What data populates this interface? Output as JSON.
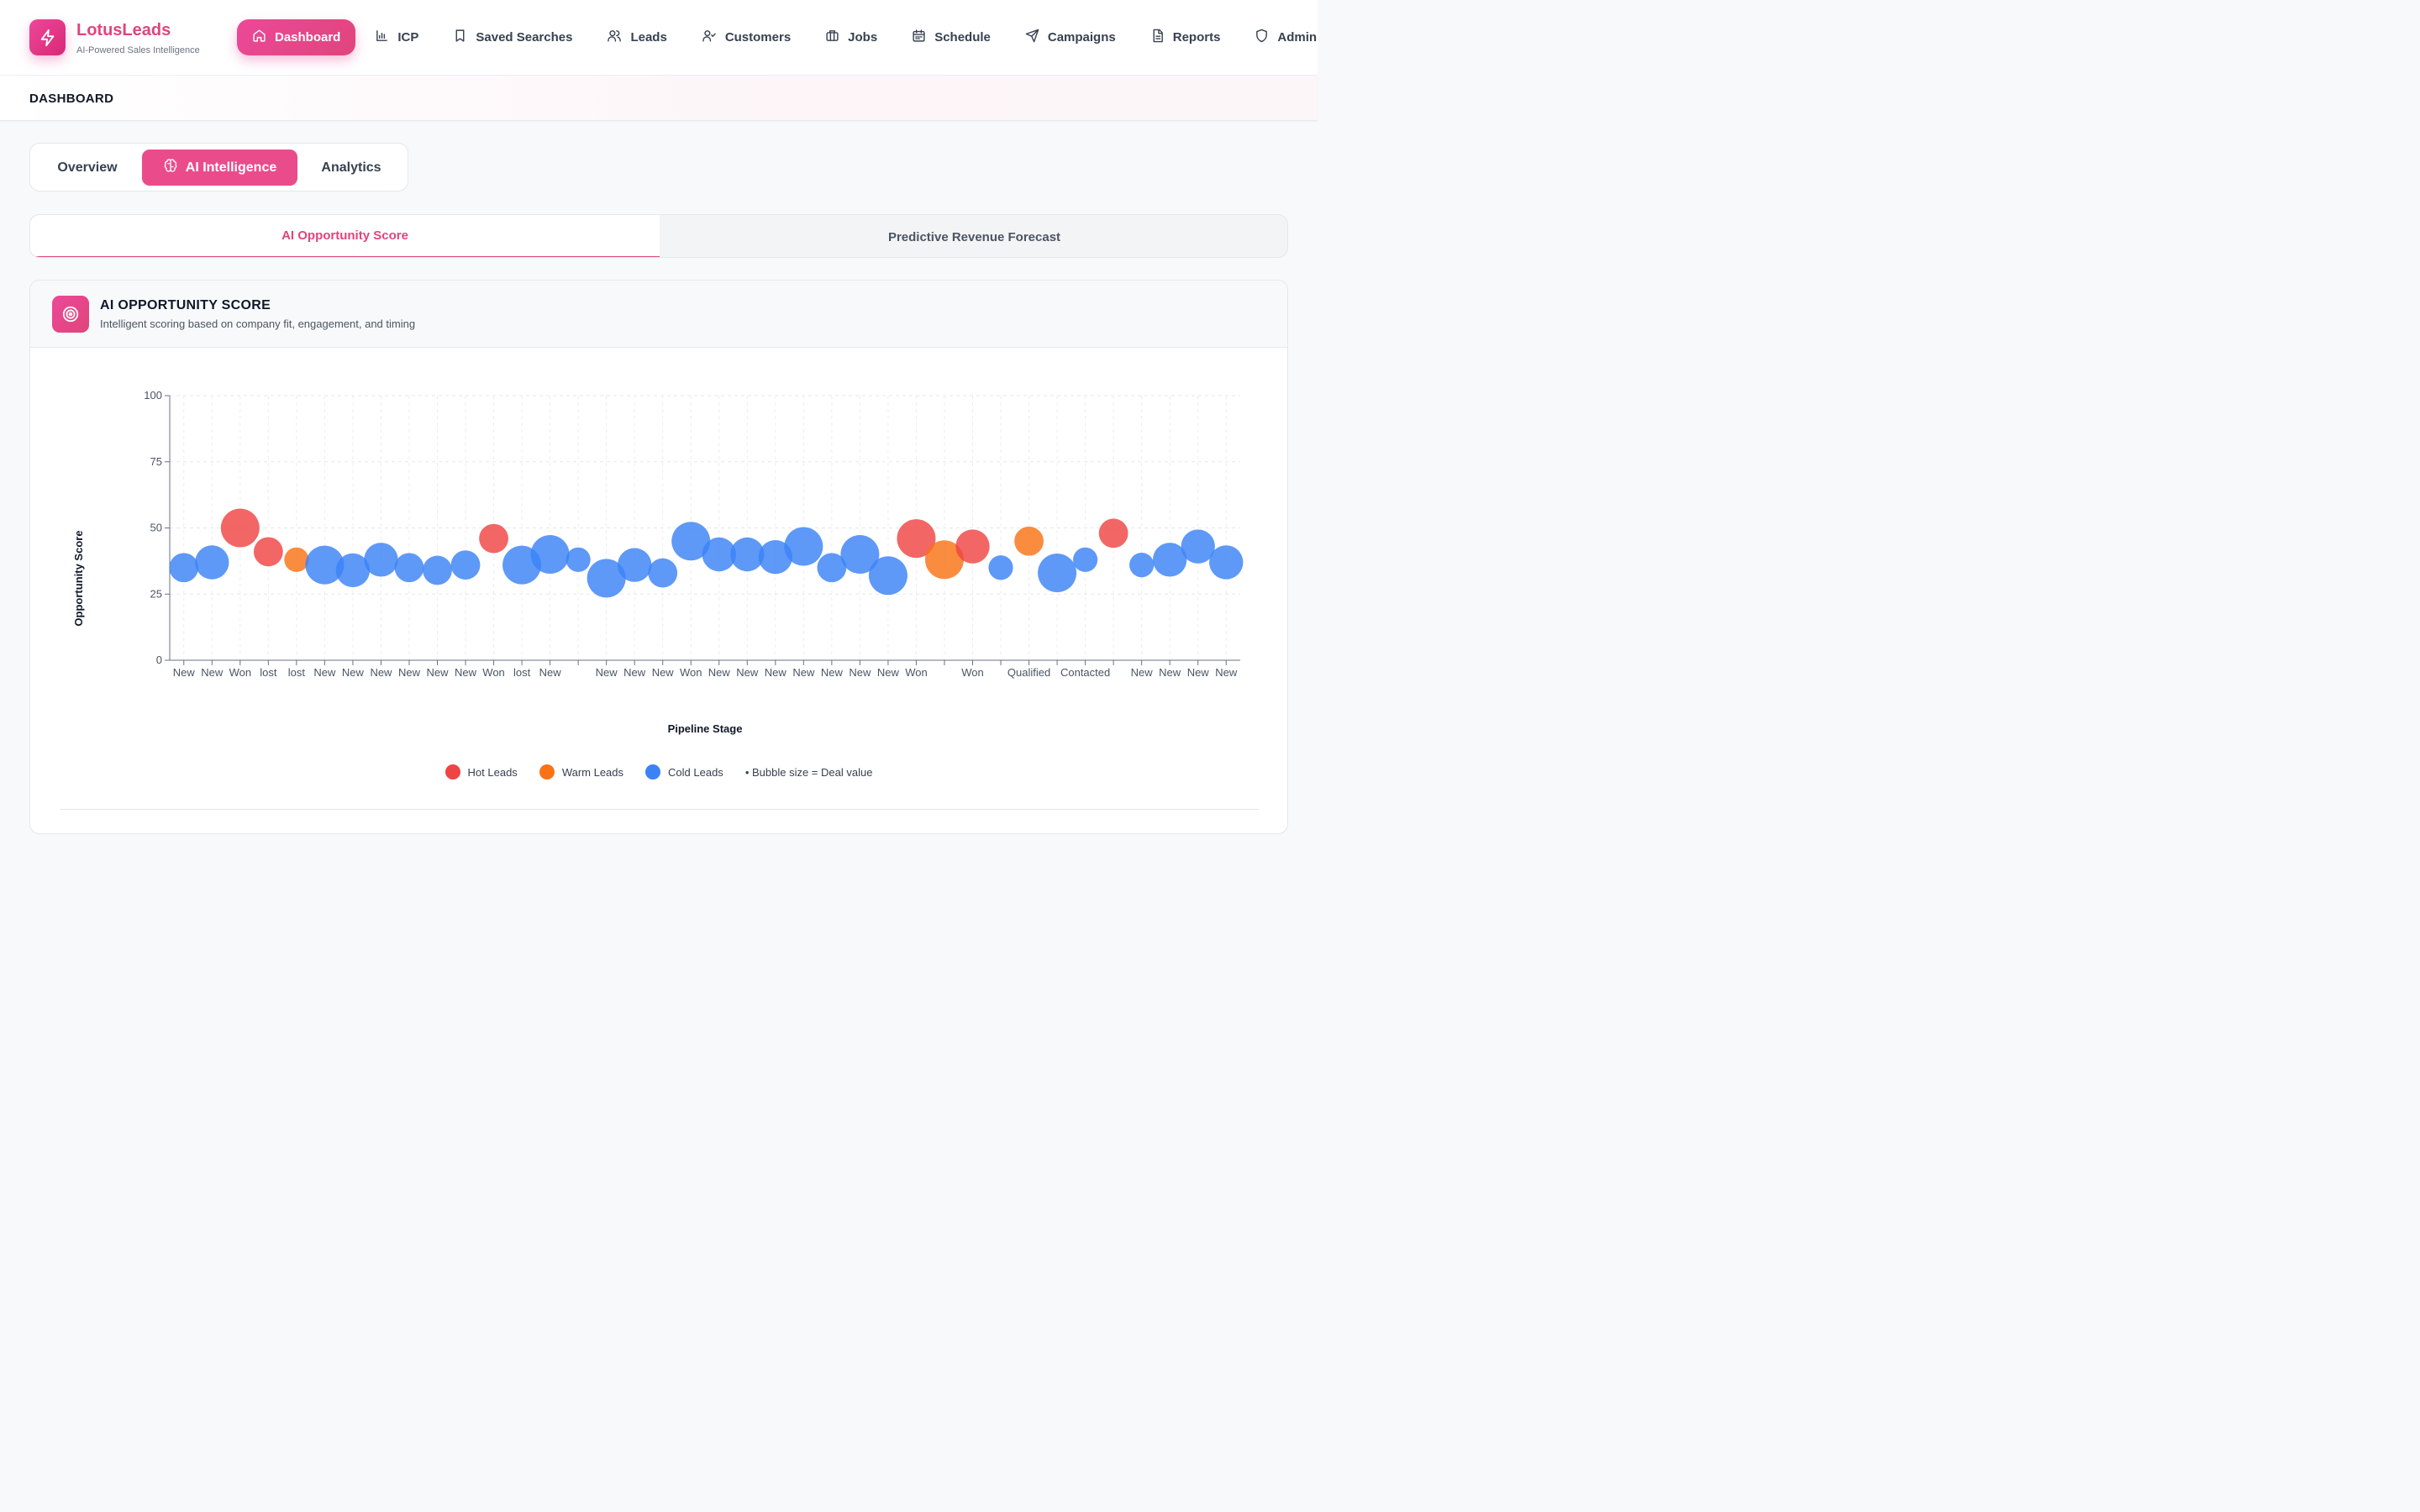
{
  "brand": {
    "name": "LotusLeads",
    "tagline": "AI-Powered Sales Intelligence"
  },
  "nav": [
    {
      "label": "Dashboard",
      "icon": "home-icon",
      "active": true
    },
    {
      "label": "ICP",
      "icon": "bar-chart-icon"
    },
    {
      "label": "Saved Searches",
      "icon": "bookmark-icon"
    },
    {
      "label": "Leads",
      "icon": "users-icon"
    },
    {
      "label": "Customers",
      "icon": "user-check-icon"
    },
    {
      "label": "Jobs",
      "icon": "briefcase-icon"
    },
    {
      "label": "Schedule",
      "icon": "calendar-icon"
    },
    {
      "label": "Campaigns",
      "icon": "send-icon"
    },
    {
      "label": "Reports",
      "icon": "file-text-icon"
    },
    {
      "label": "Admin",
      "icon": "shield-icon"
    }
  ],
  "breadcrumb": "DASHBOARD",
  "view_tabs": [
    {
      "label": "Overview"
    },
    {
      "label": "AI Intelligence",
      "icon": "brain-icon",
      "active": true
    },
    {
      "label": "Analytics"
    }
  ],
  "sub_tabs": [
    {
      "label": "AI Opportunity Score",
      "active": true
    },
    {
      "label": "Predictive Revenue Forecast"
    }
  ],
  "card": {
    "title": "AI OPPORTUNITY SCORE",
    "subtitle": "Intelligent scoring based on company fit, engagement, and timing",
    "icon": "target-icon"
  },
  "colors": {
    "accent": "#e0457b",
    "hot": "#ef4444",
    "warm": "#f97316",
    "cold": "#3b82f6"
  },
  "legend": {
    "hot": "Hot Leads",
    "warm": "Warm Leads",
    "cold": "Cold Leads",
    "note": "• Bubble size = Deal value"
  },
  "chart_data": {
    "type": "scatter",
    "xlabel": "Pipeline Stage",
    "ylabel": "Opportunity Score",
    "ylim": [
      0,
      100
    ],
    "yticks": [
      0,
      25,
      50,
      75,
      100
    ],
    "grid": true,
    "legend_position": "bottom",
    "points": [
      {
        "stage": "New",
        "score": 35,
        "size": 3,
        "category": "cold"
      },
      {
        "stage": "New",
        "score": 37,
        "size": 4,
        "category": "cold"
      },
      {
        "stage": "Won",
        "score": 50,
        "size": 5,
        "category": "hot"
      },
      {
        "stage": "lost",
        "score": 41,
        "size": 3,
        "category": "hot"
      },
      {
        "stage": "lost",
        "score": 38,
        "size": 2,
        "category": "warm"
      },
      {
        "stage": "New",
        "score": 36,
        "size": 5,
        "category": "cold"
      },
      {
        "stage": "New",
        "score": 34,
        "size": 4,
        "category": "cold"
      },
      {
        "stage": "New",
        "score": 38,
        "size": 4,
        "category": "cold"
      },
      {
        "stage": "New",
        "score": 35,
        "size": 3,
        "category": "cold"
      },
      {
        "stage": "New",
        "score": 34,
        "size": 3,
        "category": "cold"
      },
      {
        "stage": "New",
        "score": 36,
        "size": 3,
        "category": "cold"
      },
      {
        "stage": "Won",
        "score": 46,
        "size": 3,
        "category": "hot"
      },
      {
        "stage": "lost",
        "score": 36,
        "size": 5,
        "category": "cold"
      },
      {
        "stage": "New",
        "score": 40,
        "size": 5,
        "category": "cold"
      },
      {
        "stage": "",
        "score": 38,
        "size": 2,
        "category": "cold"
      },
      {
        "stage": "New",
        "score": 31,
        "size": 5,
        "category": "cold"
      },
      {
        "stage": "New",
        "score": 36,
        "size": 4,
        "category": "cold"
      },
      {
        "stage": "New",
        "score": 33,
        "size": 3,
        "category": "cold"
      },
      {
        "stage": "Won",
        "score": 45,
        "size": 5,
        "category": "cold"
      },
      {
        "stage": "New",
        "score": 40,
        "size": 4,
        "category": "cold"
      },
      {
        "stage": "New",
        "score": 40,
        "size": 4,
        "category": "cold"
      },
      {
        "stage": "New",
        "score": 39,
        "size": 4,
        "category": "cold"
      },
      {
        "stage": "New",
        "score": 43,
        "size": 5,
        "category": "cold"
      },
      {
        "stage": "New",
        "score": 35,
        "size": 3,
        "category": "cold"
      },
      {
        "stage": "New",
        "score": 40,
        "size": 5,
        "category": "cold"
      },
      {
        "stage": "New",
        "score": 32,
        "size": 5,
        "category": "cold"
      },
      {
        "stage": "Won",
        "score": 46,
        "size": 5,
        "category": "hot"
      },
      {
        "stage": "",
        "score": 38,
        "size": 5,
        "category": "warm"
      },
      {
        "stage": "Won",
        "score": 43,
        "size": 4,
        "category": "hot"
      },
      {
        "stage": "",
        "score": 35,
        "size": 2,
        "category": "cold"
      },
      {
        "stage": "Qualified",
        "score": 45,
        "size": 3,
        "category": "warm"
      },
      {
        "stage": "",
        "score": 33,
        "size": 5,
        "category": "cold"
      },
      {
        "stage": "Contacted",
        "score": 38,
        "size": 2,
        "category": "cold"
      },
      {
        "stage": "",
        "score": 48,
        "size": 3,
        "category": "hot"
      },
      {
        "stage": "New",
        "score": 36,
        "size": 2,
        "category": "cold"
      },
      {
        "stage": "New",
        "score": 38,
        "size": 4,
        "category": "cold"
      },
      {
        "stage": "New",
        "score": 43,
        "size": 4,
        "category": "cold"
      },
      {
        "stage": "New",
        "score": 37,
        "size": 4,
        "category": "cold"
      }
    ]
  }
}
